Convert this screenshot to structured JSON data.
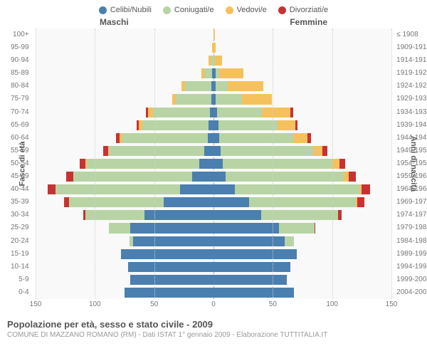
{
  "legend": [
    {
      "label": "Celibi/Nubili",
      "color": "#4a7fb0"
    },
    {
      "label": "Coniugati/e",
      "color": "#b8d4a5"
    },
    {
      "label": "Vedovi/e",
      "color": "#f5c15d"
    },
    {
      "label": "Divorziati/e",
      "color": "#c83232"
    }
  ],
  "gender": {
    "male": "Maschi",
    "female": "Femmine"
  },
  "axis": {
    "left_label": "Fasce di età",
    "right_label": "Anni di nascita",
    "x_ticks": [
      150,
      100,
      50,
      0,
      50,
      100,
      150
    ],
    "x_max": 150
  },
  "colors": {
    "single": "#4a7fb0",
    "married": "#b8d4a5",
    "widowed": "#f5c15d",
    "divorced": "#c83232",
    "bg": "#f9f9f9",
    "grid": "#cccccc"
  },
  "rows": [
    {
      "age": "100+",
      "birth": "≤ 1908",
      "m": [
        0,
        0,
        0,
        0
      ],
      "f": [
        0,
        0,
        1,
        0
      ]
    },
    {
      "age": "95-99",
      "birth": "1909-1913",
      "m": [
        0,
        0,
        1,
        0
      ],
      "f": [
        0,
        0,
        2,
        0
      ]
    },
    {
      "age": "90-94",
      "birth": "1914-1918",
      "m": [
        0,
        2,
        2,
        0
      ],
      "f": [
        0,
        1,
        6,
        0
      ]
    },
    {
      "age": "85-89",
      "birth": "1919-1923",
      "m": [
        1,
        7,
        2,
        0
      ],
      "f": [
        2,
        3,
        20,
        0
      ]
    },
    {
      "age": "80-84",
      "birth": "1924-1928",
      "m": [
        2,
        22,
        3,
        0
      ],
      "f": [
        2,
        10,
        30,
        0
      ]
    },
    {
      "age": "75-79",
      "birth": "1929-1933",
      "m": [
        2,
        30,
        3,
        0
      ],
      "f": [
        2,
        22,
        25,
        0
      ]
    },
    {
      "age": "70-74",
      "birth": "1934-1938",
      "m": [
        3,
        48,
        4,
        2
      ],
      "f": [
        3,
        38,
        24,
        2
      ]
    },
    {
      "age": "65-69",
      "birth": "1939-1943",
      "m": [
        4,
        56,
        3,
        2
      ],
      "f": [
        4,
        50,
        15,
        2
      ]
    },
    {
      "age": "60-64",
      "birth": "1944-1948",
      "m": [
        5,
        72,
        2,
        3
      ],
      "f": [
        5,
        62,
        12,
        3
      ]
    },
    {
      "age": "55-59",
      "birth": "1949-1953",
      "m": [
        8,
        80,
        1,
        4
      ],
      "f": [
        6,
        78,
        8,
        4
      ]
    },
    {
      "age": "50-54",
      "birth": "1954-1958",
      "m": [
        12,
        95,
        1,
        5
      ],
      "f": [
        8,
        92,
        6,
        5
      ]
    },
    {
      "age": "45-49",
      "birth": "1959-1963",
      "m": [
        18,
        100,
        0,
        6
      ],
      "f": [
        10,
        100,
        4,
        6
      ]
    },
    {
      "age": "40-44",
      "birth": "1964-1968",
      "m": [
        28,
        105,
        0,
        7
      ],
      "f": [
        18,
        105,
        2,
        7
      ]
    },
    {
      "age": "35-39",
      "birth": "1969-1973",
      "m": [
        42,
        80,
        0,
        4
      ],
      "f": [
        30,
        90,
        1,
        6
      ]
    },
    {
      "age": "30-34",
      "birth": "1974-1978",
      "m": [
        58,
        50,
        0,
        2
      ],
      "f": [
        40,
        65,
        0,
        3
      ]
    },
    {
      "age": "25-29",
      "birth": "1979-1983",
      "m": [
        70,
        18,
        0,
        0
      ],
      "f": [
        55,
        30,
        0,
        1
      ]
    },
    {
      "age": "20-24",
      "birth": "1984-1988",
      "m": [
        68,
        3,
        0,
        0
      ],
      "f": [
        60,
        8,
        0,
        0
      ]
    },
    {
      "age": "15-19",
      "birth": "1989-1993",
      "m": [
        78,
        0,
        0,
        0
      ],
      "f": [
        70,
        0,
        0,
        0
      ]
    },
    {
      "age": "10-14",
      "birth": "1994-1998",
      "m": [
        72,
        0,
        0,
        0
      ],
      "f": [
        65,
        0,
        0,
        0
      ]
    },
    {
      "age": "5-9",
      "birth": "1999-2003",
      "m": [
        70,
        0,
        0,
        0
      ],
      "f": [
        62,
        0,
        0,
        0
      ]
    },
    {
      "age": "0-4",
      "birth": "2004-2008",
      "m": [
        75,
        0,
        0,
        0
      ],
      "f": [
        68,
        0,
        0,
        0
      ]
    }
  ],
  "footer": {
    "title": "Popolazione per età, sesso e stato civile - 2009",
    "sub": "COMUNE DI MAZZANO ROMANO (RM) - Dati ISTAT 1° gennaio 2009 - Elaborazione TUTTITALIA.IT"
  }
}
